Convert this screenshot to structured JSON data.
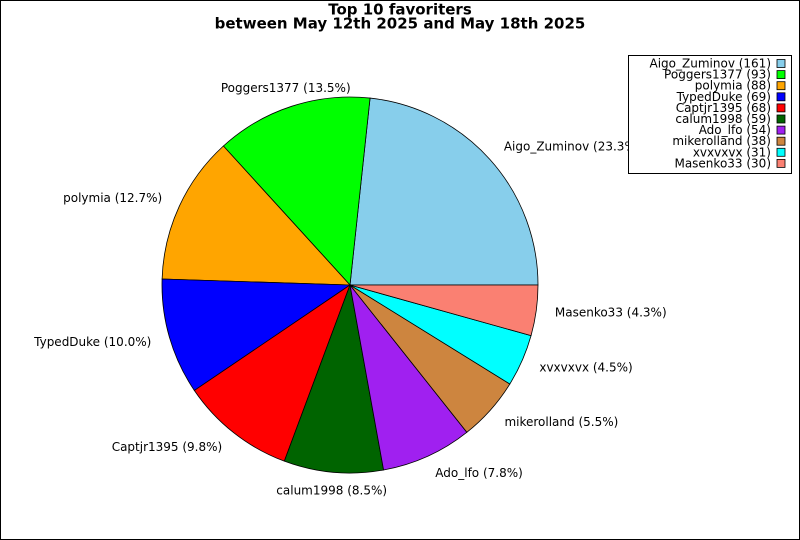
{
  "chart_data": {
    "type": "pie",
    "title": "Top 10 favoriters",
    "subtitle": "between May 12th 2025 and May 18th 2025",
    "categories": [
      "Aigo_Zuminov (161)",
      "Poggers1377 (93)",
      "polymia (88)",
      "TypedDuke (69)",
      "Captjr1395 (68)",
      "calum1998 (59)",
      "Ado_lfo (54)",
      "mikerolland (38)",
      "xvxvxvx (31)",
      "Masenko33 (30)"
    ],
    "values": [
      161,
      93,
      88,
      69,
      68,
      59,
      54,
      38,
      31,
      30
    ],
    "value_labels": [
      "Aigo_Zuminov (23.3%)",
      "Poggers1377 (13.5%)",
      "polymia (12.7%)",
      "TypedDuke (10.0%)",
      "Captjr1395 (9.8%)",
      "calum1998 (8.5%)",
      "Ado_lfo (7.8%)",
      "mikerolland (5.5%)",
      "xvxvxvx (4.5%)",
      "Masenko33 (4.3%)"
    ],
    "colors": [
      "#87ceeb",
      "#00ff00",
      "#ffa500",
      "#0000ff",
      "#ff0000",
      "#006400",
      "#a020f0",
      "#cd853f",
      "#00ffff",
      "#fa8072"
    ],
    "legend": "upper right"
  }
}
